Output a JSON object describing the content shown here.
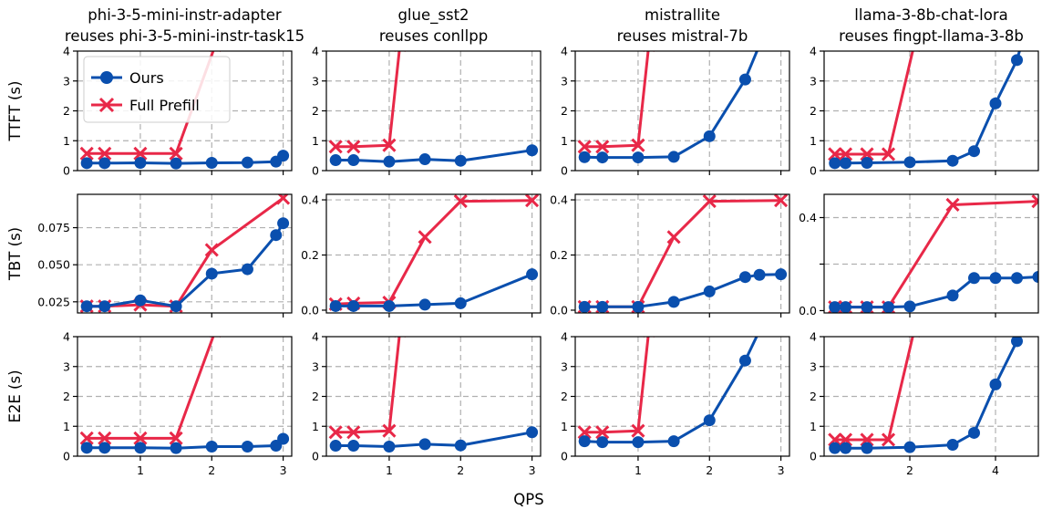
{
  "figure": {
    "xlabel": "QPS"
  },
  "legend": {
    "placement": "upper-left of first panel",
    "entries": [
      "Ours",
      "Full Prefill"
    ]
  },
  "colors": {
    "ours": "#0a4fae",
    "full_prefill": "#e82848",
    "grid": "#b0b0b0"
  },
  "chart_data": [
    {
      "type": "line",
      "row": 0,
      "col": 0,
      "title": [
        "phi-3-5-mini-instr-adapter",
        "reuses phi-3-5-mini-instr-task15"
      ],
      "ylabel": "TTFT (s)",
      "xlim": [
        0.12,
        3.12
      ],
      "ylim": [
        0,
        4
      ],
      "xticks": [
        1,
        2,
        3
      ],
      "xtick_labels": [
        "",
        "",
        ""
      ],
      "yticks": [
        0,
        1,
        2,
        3,
        4
      ],
      "ytick_labels": [
        "0",
        "1",
        "2",
        "3",
        "4"
      ],
      "grid_x": [
        1,
        2,
        3
      ],
      "grid_y": [
        1,
        2,
        3
      ],
      "series": [
        {
          "name": "Ours",
          "x": [
            0.25,
            0.5,
            1.0,
            1.5,
            2.0,
            2.5,
            2.9,
            3.0
          ],
          "y": [
            0.25,
            0.25,
            0.26,
            0.24,
            0.26,
            0.27,
            0.3,
            0.5
          ]
        },
        {
          "name": "Full Prefill",
          "x": [
            0.25,
            0.5,
            1.0,
            1.5,
            2.05
          ],
          "y": [
            0.57,
            0.57,
            0.57,
            0.57,
            4.2
          ]
        }
      ]
    },
    {
      "type": "line",
      "row": 0,
      "col": 1,
      "title": [
        "glue_sst2",
        "reuses conllpp"
      ],
      "ylabel": "",
      "xlim": [
        0.12,
        3.12
      ],
      "ylim": [
        0,
        4
      ],
      "xticks": [
        1,
        2,
        3
      ],
      "xtick_labels": [
        "",
        "",
        ""
      ],
      "yticks": [
        0,
        1,
        2,
        3,
        4
      ],
      "ytick_labels": [
        "0",
        "1",
        "2",
        "3",
        "4"
      ],
      "grid_x": [
        1,
        2,
        3
      ],
      "grid_y": [
        1,
        2,
        3
      ],
      "series": [
        {
          "name": "Ours",
          "x": [
            0.25,
            0.5,
            1.0,
            1.5,
            2.0,
            3.0
          ],
          "y": [
            0.35,
            0.35,
            0.3,
            0.38,
            0.33,
            0.68
          ]
        },
        {
          "name": "Full Prefill",
          "x": [
            0.25,
            0.5,
            1.0,
            1.15
          ],
          "y": [
            0.8,
            0.8,
            0.85,
            4.2
          ]
        }
      ]
    },
    {
      "type": "line",
      "row": 0,
      "col": 2,
      "title": [
        "mistrallite",
        "reuses mistral-7b"
      ],
      "ylabel": "",
      "xlim": [
        0.12,
        3.12
      ],
      "ylim": [
        0,
        4
      ],
      "xticks": [
        1,
        2,
        3
      ],
      "xtick_labels": [
        "",
        "",
        ""
      ],
      "yticks": [
        0,
        1,
        2,
        3,
        4
      ],
      "ytick_labels": [
        "0",
        "1",
        "2",
        "3",
        "4"
      ],
      "grid_x": [
        1,
        2,
        3
      ],
      "grid_y": [
        1,
        2,
        3
      ],
      "series": [
        {
          "name": "Ours",
          "x": [
            0.25,
            0.5,
            1.0,
            1.5,
            2.0,
            2.5,
            2.7
          ],
          "y": [
            0.45,
            0.44,
            0.44,
            0.46,
            1.15,
            3.05,
            4.2
          ]
        },
        {
          "name": "Full Prefill",
          "x": [
            0.25,
            0.5,
            1.0,
            1.15
          ],
          "y": [
            0.8,
            0.8,
            0.85,
            4.2
          ]
        }
      ]
    },
    {
      "type": "line",
      "row": 0,
      "col": 3,
      "title": [
        "llama-3-8b-chat-lora",
        "reuses fingpt-llama-3-8b"
      ],
      "ylabel": "",
      "xlim": [
        0.0,
        5.0
      ],
      "ylim": [
        0,
        4
      ],
      "xticks": [
        2,
        4
      ],
      "xtick_labels": [
        "",
        ""
      ],
      "yticks": [
        0,
        1,
        2,
        3,
        4
      ],
      "ytick_labels": [
        "0",
        "1",
        "2",
        "3",
        "4"
      ],
      "grid_x": [
        2,
        4
      ],
      "grid_y": [
        1,
        2,
        3
      ],
      "series": [
        {
          "name": "Ours",
          "x": [
            0.25,
            0.5,
            1.0,
            2.0,
            3.0,
            3.5,
            4.0,
            4.5,
            4.6
          ],
          "y": [
            0.25,
            0.25,
            0.26,
            0.28,
            0.33,
            0.65,
            2.25,
            3.7,
            4.2
          ]
        },
        {
          "name": "Full Prefill",
          "x": [
            0.25,
            0.5,
            1.0,
            1.5,
            2.1
          ],
          "y": [
            0.55,
            0.55,
            0.55,
            0.55,
            4.2
          ]
        }
      ]
    },
    {
      "type": "line",
      "row": 1,
      "col": 0,
      "title": [
        "",
        ""
      ],
      "ylabel": "TBT (s)",
      "xlim": [
        0.12,
        3.12
      ],
      "ylim": [
        0.0175,
        0.0975
      ],
      "xticks": [
        1,
        2,
        3
      ],
      "xtick_labels": [
        "",
        "",
        ""
      ],
      "yticks": [
        0.025,
        0.05,
        0.075
      ],
      "ytick_labels": [
        "0.025",
        "0.050",
        "0.075"
      ],
      "grid_x": [
        1,
        2,
        3
      ],
      "grid_y": [
        0.025,
        0.05,
        0.075
      ],
      "series": [
        {
          "name": "Ours",
          "x": [
            0.25,
            0.5,
            1.0,
            1.5,
            2.0,
            2.5,
            2.9,
            3.0
          ],
          "y": [
            0.022,
            0.022,
            0.026,
            0.022,
            0.044,
            0.047,
            0.07,
            0.078
          ]
        },
        {
          "name": "Full Prefill",
          "x": [
            0.25,
            0.5,
            1.0,
            1.5,
            2.0,
            3.0
          ],
          "y": [
            0.022,
            0.022,
            0.023,
            0.022,
            0.06,
            0.095
          ]
        }
      ]
    },
    {
      "type": "line",
      "row": 1,
      "col": 1,
      "title": [
        "",
        ""
      ],
      "ylabel": "",
      "xlim": [
        0.12,
        3.12
      ],
      "ylim": [
        -0.01,
        0.42
      ],
      "xticks": [
        1,
        2,
        3
      ],
      "xtick_labels": [
        "",
        "",
        ""
      ],
      "yticks": [
        0.0,
        0.2,
        0.4
      ],
      "ytick_labels": [
        "0.0",
        "0.2",
        "0.4"
      ],
      "grid_x": [
        1,
        2,
        3
      ],
      "grid_y": [
        0.2,
        0.4
      ],
      "series": [
        {
          "name": "Ours",
          "x": [
            0.25,
            0.5,
            1.0,
            1.5,
            2.0,
            3.0
          ],
          "y": [
            0.015,
            0.015,
            0.015,
            0.02,
            0.025,
            0.13
          ]
        },
        {
          "name": "Full Prefill",
          "x": [
            0.25,
            0.5,
            1.0,
            1.5,
            2.0,
            3.0
          ],
          "y": [
            0.022,
            0.025,
            0.028,
            0.265,
            0.395,
            0.398
          ]
        }
      ]
    },
    {
      "type": "line",
      "row": 1,
      "col": 2,
      "title": [
        "",
        ""
      ],
      "ylabel": "",
      "xlim": [
        0.12,
        3.12
      ],
      "ylim": [
        -0.01,
        0.42
      ],
      "xticks": [
        1,
        2,
        3
      ],
      "xtick_labels": [
        "",
        "",
        ""
      ],
      "yticks": [
        0.0,
        0.2,
        0.4
      ],
      "ytick_labels": [
        "0.0",
        "0.2",
        "0.4"
      ],
      "grid_x": [
        1,
        2,
        3
      ],
      "grid_y": [
        0.2,
        0.4
      ],
      "series": [
        {
          "name": "Ours",
          "x": [
            0.25,
            0.5,
            1.0,
            1.5,
            2.0,
            2.5,
            2.7,
            3.0
          ],
          "y": [
            0.012,
            0.012,
            0.012,
            0.03,
            0.068,
            0.12,
            0.128,
            0.13
          ]
        },
        {
          "name": "Full Prefill",
          "x": [
            0.25,
            0.5,
            1.0,
            1.5,
            2.0,
            3.0
          ],
          "y": [
            0.012,
            0.012,
            0.012,
            0.265,
            0.395,
            0.398
          ]
        }
      ]
    },
    {
      "type": "line",
      "row": 1,
      "col": 3,
      "title": [
        "",
        ""
      ],
      "ylabel": "",
      "xlim": [
        0.0,
        5.0
      ],
      "ylim": [
        -0.01,
        0.5
      ],
      "xticks": [
        2,
        4
      ],
      "xtick_labels": [
        "",
        ""
      ],
      "yticks": [
        0.0,
        0.2,
        0.4
      ],
      "ytick_labels": [
        "0.0",
        "",
        "0.4"
      ],
      "grid_x": [
        2,
        4
      ],
      "grid_y": [
        0.2,
        0.4
      ],
      "series": [
        {
          "name": "Ours",
          "x": [
            0.25,
            0.5,
            1.0,
            1.5,
            2.0,
            3.0,
            3.5,
            4.0,
            4.5,
            5.0
          ],
          "y": [
            0.015,
            0.015,
            0.015,
            0.015,
            0.018,
            0.065,
            0.14,
            0.14,
            0.14,
            0.145
          ]
        },
        {
          "name": "Full Prefill",
          "x": [
            0.25,
            0.5,
            1.0,
            1.5,
            3.0,
            5.0
          ],
          "y": [
            0.015,
            0.015,
            0.015,
            0.015,
            0.455,
            0.47
          ]
        }
      ]
    },
    {
      "type": "line",
      "row": 2,
      "col": 0,
      "title": [
        "",
        ""
      ],
      "ylabel": "E2E (s)",
      "xlim": [
        0.12,
        3.12
      ],
      "ylim": [
        0,
        4
      ],
      "xticks": [
        1,
        2,
        3
      ],
      "xtick_labels": [
        "1",
        "2",
        "3"
      ],
      "yticks": [
        0,
        1,
        2,
        3,
        4
      ],
      "ytick_labels": [
        "0",
        "1",
        "2",
        "3",
        "4"
      ],
      "grid_x": [
        1,
        2,
        3
      ],
      "grid_y": [
        1,
        2,
        3
      ],
      "series": [
        {
          "name": "Ours",
          "x": [
            0.25,
            0.5,
            1.0,
            1.5,
            2.0,
            2.5,
            2.9,
            3.0
          ],
          "y": [
            0.28,
            0.28,
            0.28,
            0.27,
            0.32,
            0.32,
            0.35,
            0.58
          ]
        },
        {
          "name": "Full Prefill",
          "x": [
            0.25,
            0.5,
            1.0,
            1.5,
            2.05
          ],
          "y": [
            0.6,
            0.6,
            0.6,
            0.6,
            4.2
          ]
        }
      ]
    },
    {
      "type": "line",
      "row": 2,
      "col": 1,
      "title": [
        "",
        ""
      ],
      "ylabel": "",
      "xlim": [
        0.12,
        3.12
      ],
      "ylim": [
        0,
        4
      ],
      "xticks": [
        1,
        2,
        3
      ],
      "xtick_labels": [
        "1",
        "2",
        "3"
      ],
      "yticks": [
        0,
        1,
        2,
        3,
        4
      ],
      "ytick_labels": [
        "0",
        "1",
        "2",
        "3",
        "4"
      ],
      "grid_x": [
        1,
        2,
        3
      ],
      "grid_y": [
        1,
        2,
        3
      ],
      "series": [
        {
          "name": "Ours",
          "x": [
            0.25,
            0.5,
            1.0,
            1.5,
            2.0,
            3.0
          ],
          "y": [
            0.35,
            0.35,
            0.32,
            0.4,
            0.36,
            0.8
          ]
        },
        {
          "name": "Full Prefill",
          "x": [
            0.25,
            0.5,
            1.0,
            1.15
          ],
          "y": [
            0.8,
            0.8,
            0.85,
            4.2
          ]
        }
      ]
    },
    {
      "type": "line",
      "row": 2,
      "col": 2,
      "title": [
        "",
        ""
      ],
      "ylabel": "",
      "xlim": [
        0.12,
        3.12
      ],
      "ylim": [
        0,
        4
      ],
      "xticks": [
        1,
        2,
        3
      ],
      "xtick_labels": [
        "1",
        "2",
        "3"
      ],
      "yticks": [
        0,
        1,
        2,
        3,
        4
      ],
      "ytick_labels": [
        "0",
        "1",
        "2",
        "3",
        "4"
      ],
      "grid_x": [
        1,
        2,
        3
      ],
      "grid_y": [
        1,
        2,
        3
      ],
      "series": [
        {
          "name": "Ours",
          "x": [
            0.25,
            0.5,
            1.0,
            1.5,
            2.0,
            2.5,
            2.7
          ],
          "y": [
            0.5,
            0.47,
            0.47,
            0.5,
            1.2,
            3.2,
            4.2
          ]
        },
        {
          "name": "Full Prefill",
          "x": [
            0.25,
            0.5,
            1.0,
            1.15
          ],
          "y": [
            0.8,
            0.8,
            0.85,
            4.2
          ]
        }
      ]
    },
    {
      "type": "line",
      "row": 2,
      "col": 3,
      "title": [
        "",
        ""
      ],
      "ylabel": "",
      "xlim": [
        0.0,
        5.0
      ],
      "ylim": [
        0,
        4
      ],
      "xticks": [
        2,
        4
      ],
      "xtick_labels": [
        "2",
        "4"
      ],
      "yticks": [
        0,
        1,
        2,
        3,
        4
      ],
      "ytick_labels": [
        "0",
        "1",
        "2",
        "3",
        "4"
      ],
      "grid_x": [
        2,
        4
      ],
      "grid_y": [
        1,
        2,
        3
      ],
      "series": [
        {
          "name": "Ours",
          "x": [
            0.25,
            0.5,
            1.0,
            2.0,
            3.0,
            3.5,
            4.0,
            4.5,
            4.6
          ],
          "y": [
            0.27,
            0.27,
            0.27,
            0.3,
            0.38,
            0.78,
            2.4,
            3.85,
            4.2
          ]
        },
        {
          "name": "Full Prefill",
          "x": [
            0.25,
            0.5,
            1.0,
            1.5,
            2.1
          ],
          "y": [
            0.55,
            0.55,
            0.55,
            0.55,
            4.2
          ]
        }
      ]
    }
  ]
}
